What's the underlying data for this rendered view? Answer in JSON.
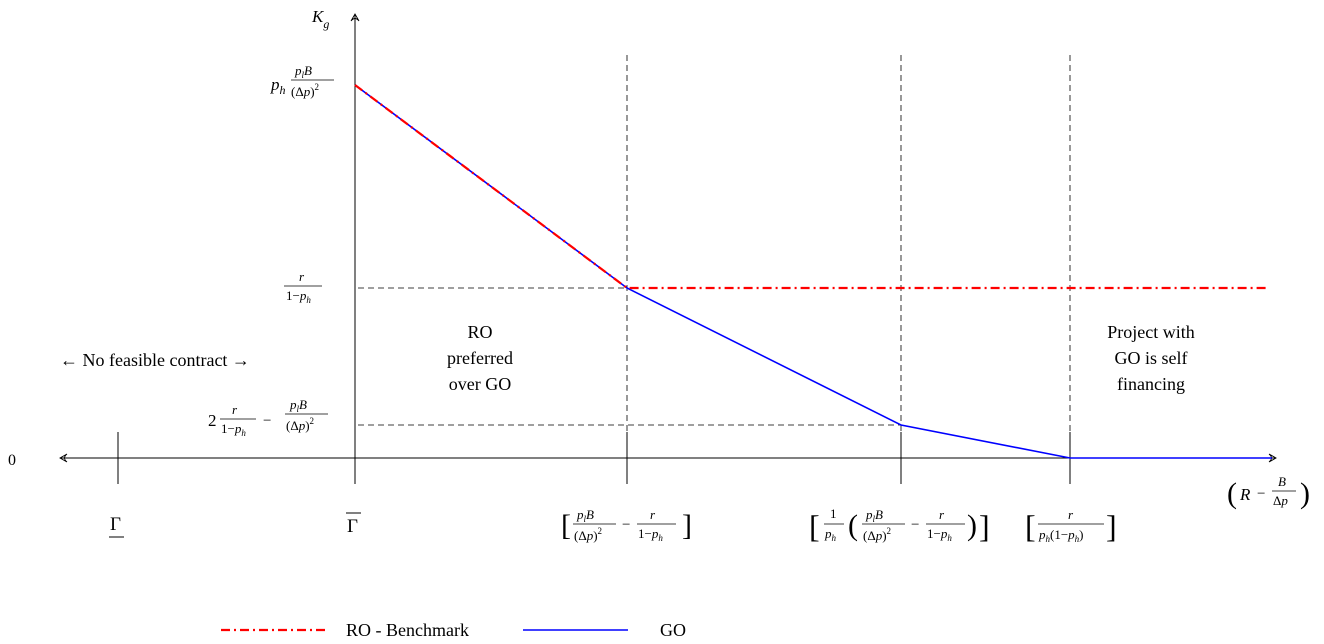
{
  "chart_data": {
    "type": "line",
    "xlabel": "(R − B/Δp)",
    "ylabel": "K_g",
    "origin_label": "0",
    "x_markers": [
      {
        "name": "gamma_lower",
        "label": "Γ (underlined)"
      },
      {
        "name": "gamma_upper",
        "label": "Γ (overlined)"
      },
      {
        "name": "x1",
        "label": "[ p_l B/(Δp)^2 − r/(1−p_h) ]"
      },
      {
        "name": "x2",
        "label": "[ (1/p_h)( p_l B/(Δp)^2 − r/(1−p_h) ) ]"
      },
      {
        "name": "x3",
        "label": "[ r/(p_h(1−p_h)) ]"
      }
    ],
    "y_markers": [
      {
        "name": "y_top",
        "label": "p_h p_l B/(Δp)^2"
      },
      {
        "name": "y_mid",
        "label": "r/(1−p_h)"
      },
      {
        "name": "y_low",
        "label": "2 r/(1−p_h) − p_l B/(Δp)^2"
      }
    ],
    "series": [
      {
        "name": "RO - Benchmark",
        "color": "#ff0000",
        "style": "dash-dot",
        "points": [
          [
            "gamma_upper",
            "y_top"
          ],
          [
            "x1",
            "y_mid"
          ],
          [
            "x_end",
            "y_mid"
          ]
        ]
      },
      {
        "name": "GO",
        "color": "#0000ff",
        "style": "solid",
        "points": [
          [
            "gamma_upper",
            "y_top"
          ],
          [
            "x1",
            "y_mid"
          ],
          [
            "x2",
            "y_low"
          ],
          [
            "x3",
            "0"
          ],
          [
            "x_end",
            "0"
          ]
        ]
      }
    ],
    "legend": {
      "placement": "bottom"
    },
    "annotations": {
      "no_feasible": "← No feasible contract →",
      "ro_preferred": [
        "RO",
        "preferred",
        "over GO"
      ],
      "self_financing": [
        "Project with",
        "GO is self",
        "financing"
      ]
    }
  },
  "legend_labels": {
    "ro": "RO - Benchmark",
    "go": "GO"
  }
}
